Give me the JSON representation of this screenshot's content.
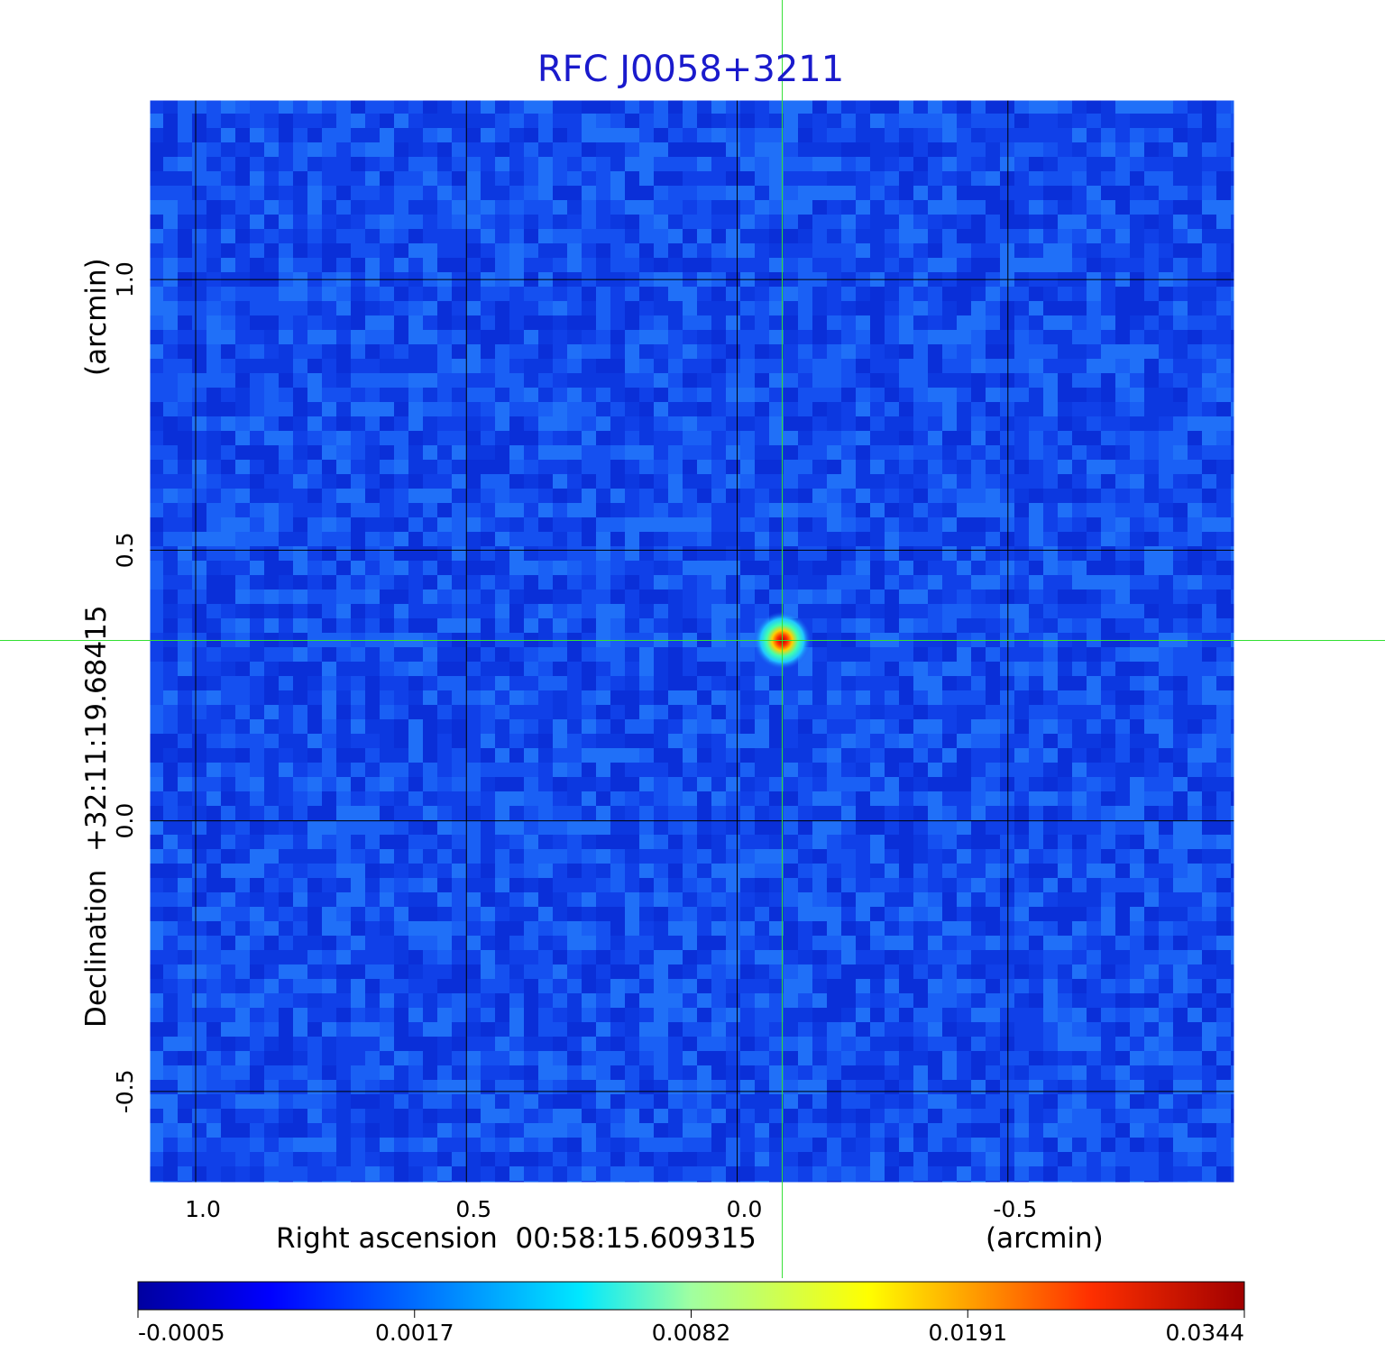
{
  "title": "RFC J0058+3211",
  "x_axis": {
    "label": "Right ascension  00:58:15.609315",
    "unit": "(arcmin)",
    "ticks": [
      "1.0",
      "0.5",
      "0.0",
      "-0.5"
    ],
    "tick_values": [
      1.0,
      0.5,
      0.0,
      -0.5
    ],
    "range": [
      1.0866,
      -0.92
    ]
  },
  "y_axis": {
    "label": "Declination  +32:11:19.68415",
    "unit": "(arcmin)",
    "ticks": [
      "1.0",
      "0.5",
      "0.0",
      "-0.5"
    ],
    "tick_values": [
      1.0,
      0.5,
      0.0,
      -0.5
    ],
    "range": [
      -0.67,
      1.3333
    ]
  },
  "source": {
    "ra_offset": -0.0833,
    "dec_offset": 0.3333,
    "peak": 0.0344
  },
  "colorbar": {
    "ticks": [
      "-0.0005",
      "0.0017",
      "0.0082",
      "0.0191",
      "0.0344"
    ],
    "colors": [
      "#0000a0",
      "#0000ff",
      "#00e8ff",
      "#ffff00",
      "#ff0000",
      "#a00000"
    ]
  },
  "colors": {
    "title": "#1a1acc",
    "background_map": "#1a55f0",
    "grid": "#000000",
    "crosshair": "#33e033"
  },
  "grid": true
}
